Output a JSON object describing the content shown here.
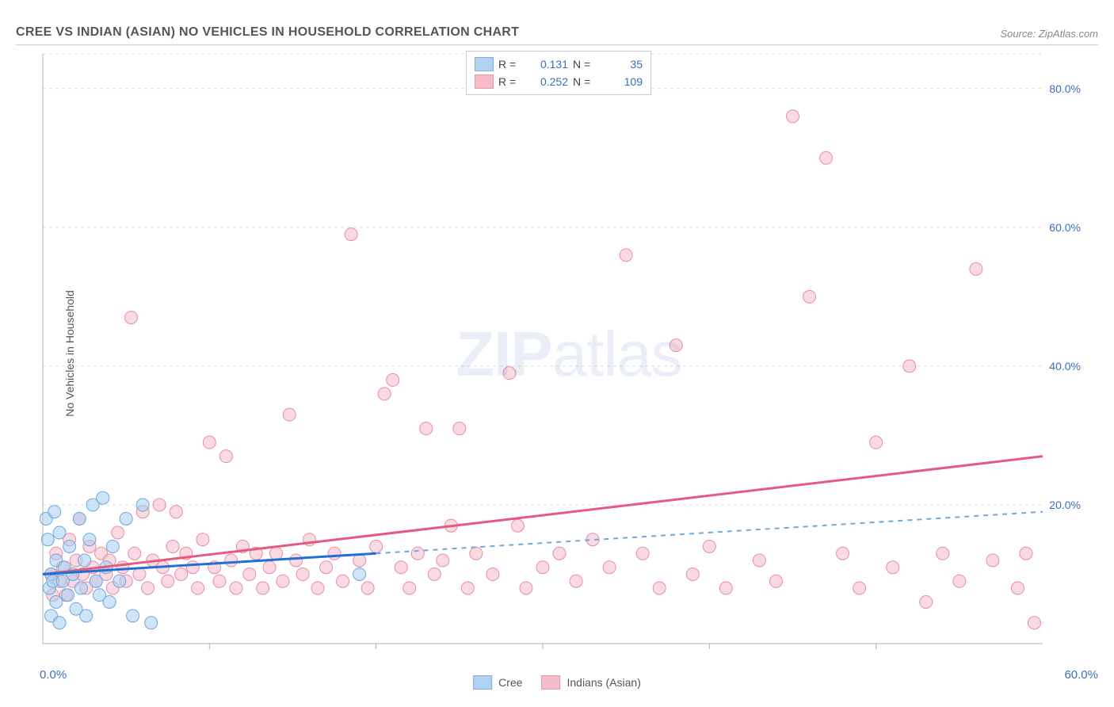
{
  "header": {
    "title": "CREE VS INDIAN (ASIAN) NO VEHICLES IN HOUSEHOLD CORRELATION CHART",
    "source": "Source: ZipAtlas.com"
  },
  "watermark": {
    "zip": "ZIP",
    "atlas": "atlas"
  },
  "chart": {
    "type": "scatter",
    "xlim": [
      0,
      60
    ],
    "ylim": [
      0,
      85
    ],
    "ytick_step": 20,
    "yticks": [
      20,
      40,
      60,
      80
    ],
    "xtick_step": 10,
    "ylabel": "No Vehicles in Household",
    "x_origin_label": "0.0%",
    "x_max_label": "60.0%",
    "marker_radius": 8,
    "grid_color": "#dcdcdc",
    "axis_line_color": "#b0b0b0",
    "axis_tick_color": "#3a6fb7",
    "background_color": "#ffffff",
    "label_fontsize": 14,
    "title_fontsize": 16,
    "series": {
      "cree": {
        "label": "Cree",
        "fill": "#a8cdf0",
        "fill_opacity": 0.55,
        "stroke": "#6fa8dc",
        "trend_color": "#1f6fd4",
        "trend_width": 3,
        "trend_dash_color": "#6fa8dc",
        "r_value": "0.131",
        "n_value": "35",
        "trend_solid": {
          "x1": 0,
          "y1": 10,
          "x2": 20,
          "y2": 13
        },
        "trend_dash": {
          "x1": 20,
          "y1": 13,
          "x2": 60,
          "y2": 19
        },
        "points": [
          [
            0.2,
            18
          ],
          [
            0.3,
            15
          ],
          [
            0.4,
            8
          ],
          [
            0.5,
            10
          ],
          [
            0.5,
            4
          ],
          [
            0.6,
            9
          ],
          [
            0.7,
            19
          ],
          [
            0.8,
            12
          ],
          [
            0.8,
            6
          ],
          [
            1.0,
            16
          ],
          [
            1.0,
            3
          ],
          [
            1.2,
            9
          ],
          [
            1.3,
            11
          ],
          [
            1.5,
            7
          ],
          [
            1.6,
            14
          ],
          [
            1.8,
            10
          ],
          [
            2.0,
            5
          ],
          [
            2.2,
            18
          ],
          [
            2.3,
            8
          ],
          [
            2.5,
            12
          ],
          [
            2.6,
            4
          ],
          [
            2.8,
            15
          ],
          [
            3.0,
            20
          ],
          [
            3.2,
            9
          ],
          [
            3.4,
            7
          ],
          [
            3.6,
            21
          ],
          [
            3.8,
            11
          ],
          [
            4.0,
            6
          ],
          [
            4.2,
            14
          ],
          [
            4.6,
            9
          ],
          [
            5.0,
            18
          ],
          [
            5.4,
            4
          ],
          [
            6.0,
            20
          ],
          [
            6.5,
            3
          ],
          [
            19.0,
            10
          ]
        ]
      },
      "indian": {
        "label": "Indians (Asian)",
        "fill": "#f4b6c5",
        "fill_opacity": 0.5,
        "stroke": "#e98ca5",
        "trend_color": "#e65a7f",
        "trend_width": 3,
        "r_value": "0.252",
        "n_value": "109",
        "trend": {
          "x1": 0,
          "y1": 10,
          "x2": 60,
          "y2": 27
        },
        "points": [
          [
            0.5,
            10
          ],
          [
            0.6,
            7
          ],
          [
            0.8,
            13
          ],
          [
            1.0,
            9
          ],
          [
            1.2,
            11
          ],
          [
            1.4,
            7
          ],
          [
            1.6,
            15
          ],
          [
            1.8,
            9
          ],
          [
            2.0,
            12
          ],
          [
            2.2,
            18
          ],
          [
            2.4,
            10
          ],
          [
            2.6,
            8
          ],
          [
            2.8,
            14
          ],
          [
            3.0,
            11
          ],
          [
            3.2,
            9
          ],
          [
            3.5,
            13
          ],
          [
            3.8,
            10
          ],
          [
            4.0,
            12
          ],
          [
            4.2,
            8
          ],
          [
            4.5,
            16
          ],
          [
            4.8,
            11
          ],
          [
            5.0,
            9
          ],
          [
            5.3,
            47
          ],
          [
            5.5,
            13
          ],
          [
            5.8,
            10
          ],
          [
            6.0,
            19
          ],
          [
            6.3,
            8
          ],
          [
            6.6,
            12
          ],
          [
            7.0,
            20
          ],
          [
            7.2,
            11
          ],
          [
            7.5,
            9
          ],
          [
            7.8,
            14
          ],
          [
            8.0,
            19
          ],
          [
            8.3,
            10
          ],
          [
            8.6,
            13
          ],
          [
            9.0,
            11
          ],
          [
            9.3,
            8
          ],
          [
            9.6,
            15
          ],
          [
            10.0,
            29
          ],
          [
            10.3,
            11
          ],
          [
            10.6,
            9
          ],
          [
            11.0,
            27
          ],
          [
            11.3,
            12
          ],
          [
            11.6,
            8
          ],
          [
            12.0,
            14
          ],
          [
            12.4,
            10
          ],
          [
            12.8,
            13
          ],
          [
            13.2,
            8
          ],
          [
            13.6,
            11
          ],
          [
            14.0,
            13
          ],
          [
            14.4,
            9
          ],
          [
            14.8,
            33
          ],
          [
            15.2,
            12
          ],
          [
            15.6,
            10
          ],
          [
            16.0,
            15
          ],
          [
            16.5,
            8
          ],
          [
            17.0,
            11
          ],
          [
            17.5,
            13
          ],
          [
            18.0,
            9
          ],
          [
            18.5,
            59
          ],
          [
            19.0,
            12
          ],
          [
            19.5,
            8
          ],
          [
            20.0,
            14
          ],
          [
            20.5,
            36
          ],
          [
            21.0,
            38
          ],
          [
            21.5,
            11
          ],
          [
            22.0,
            8
          ],
          [
            22.5,
            13
          ],
          [
            23.0,
            31
          ],
          [
            23.5,
            10
          ],
          [
            24.0,
            12
          ],
          [
            24.5,
            17
          ],
          [
            25.0,
            31
          ],
          [
            25.5,
            8
          ],
          [
            26.0,
            13
          ],
          [
            27.0,
            10
          ],
          [
            28.0,
            39
          ],
          [
            28.5,
            17
          ],
          [
            29.0,
            8
          ],
          [
            30.0,
            11
          ],
          [
            31.0,
            13
          ],
          [
            32.0,
            9
          ],
          [
            33.0,
            15
          ],
          [
            34.0,
            11
          ],
          [
            35.0,
            56
          ],
          [
            36.0,
            13
          ],
          [
            37.0,
            8
          ],
          [
            38.0,
            43
          ],
          [
            39.0,
            10
          ],
          [
            40.0,
            14
          ],
          [
            41.0,
            8
          ],
          [
            43.0,
            12
          ],
          [
            44.0,
            9
          ],
          [
            45.0,
            76
          ],
          [
            46.0,
            50
          ],
          [
            47.0,
            70
          ],
          [
            48.0,
            13
          ],
          [
            49.0,
            8
          ],
          [
            50.0,
            29
          ],
          [
            51.0,
            11
          ],
          [
            52.0,
            40
          ],
          [
            53.0,
            6
          ],
          [
            54.0,
            13
          ],
          [
            55.0,
            9
          ],
          [
            56.0,
            54
          ],
          [
            57.0,
            12
          ],
          [
            58.5,
            8
          ],
          [
            59.0,
            13
          ],
          [
            59.5,
            3
          ]
        ]
      }
    }
  },
  "legend_top": {
    "r_label": "R =",
    "n_label": "N ="
  }
}
